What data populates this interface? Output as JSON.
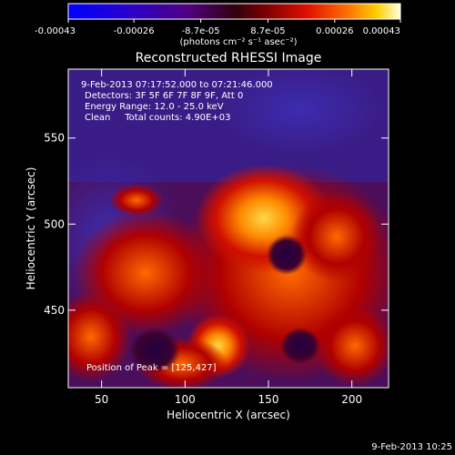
{
  "colorbar": {
    "tick_labels": [
      "-0.00043",
      "-0.00026",
      "-8.7e-05",
      "8.7e-05",
      "0.00026",
      "0.00043"
    ],
    "tick_values": [
      -0.00043,
      -0.00026,
      -8.7e-05,
      8.7e-05,
      0.00026,
      0.00043
    ],
    "range": [
      -0.00043,
      0.00043
    ],
    "units_label": "(photons cm⁻² s⁻¹ asec⁻²)"
  },
  "chart_data": {
    "type": "heatmap",
    "title": "Reconstructed RHESSI Image",
    "xlabel": "Heliocentric X (arcsec)",
    "ylabel": "Heliocentric Y (arcsec)",
    "xlim": [
      30,
      222
    ],
    "ylim": [
      405,
      590
    ],
    "x_ticks": [
      50,
      100,
      150,
      200
    ],
    "y_ticks": [
      450,
      500,
      550
    ],
    "annotations": [
      "9-Feb-2013 07:17:52.000 to 07:21:46.000",
      "Detectors: 3F 5F 6F 7F 8F 9F, Att 0",
      "Energy Range: 12.0 - 25.0 keV",
      "Clean     Total counts: 4.90E+03"
    ],
    "peak_label": "Position of Peak = [125,427]",
    "peak": [
      125,
      427
    ]
  },
  "footer_timestamp": "9-Feb-2013 10:25",
  "colors": {
    "axes": "#ffffff",
    "background": "#000000"
  }
}
